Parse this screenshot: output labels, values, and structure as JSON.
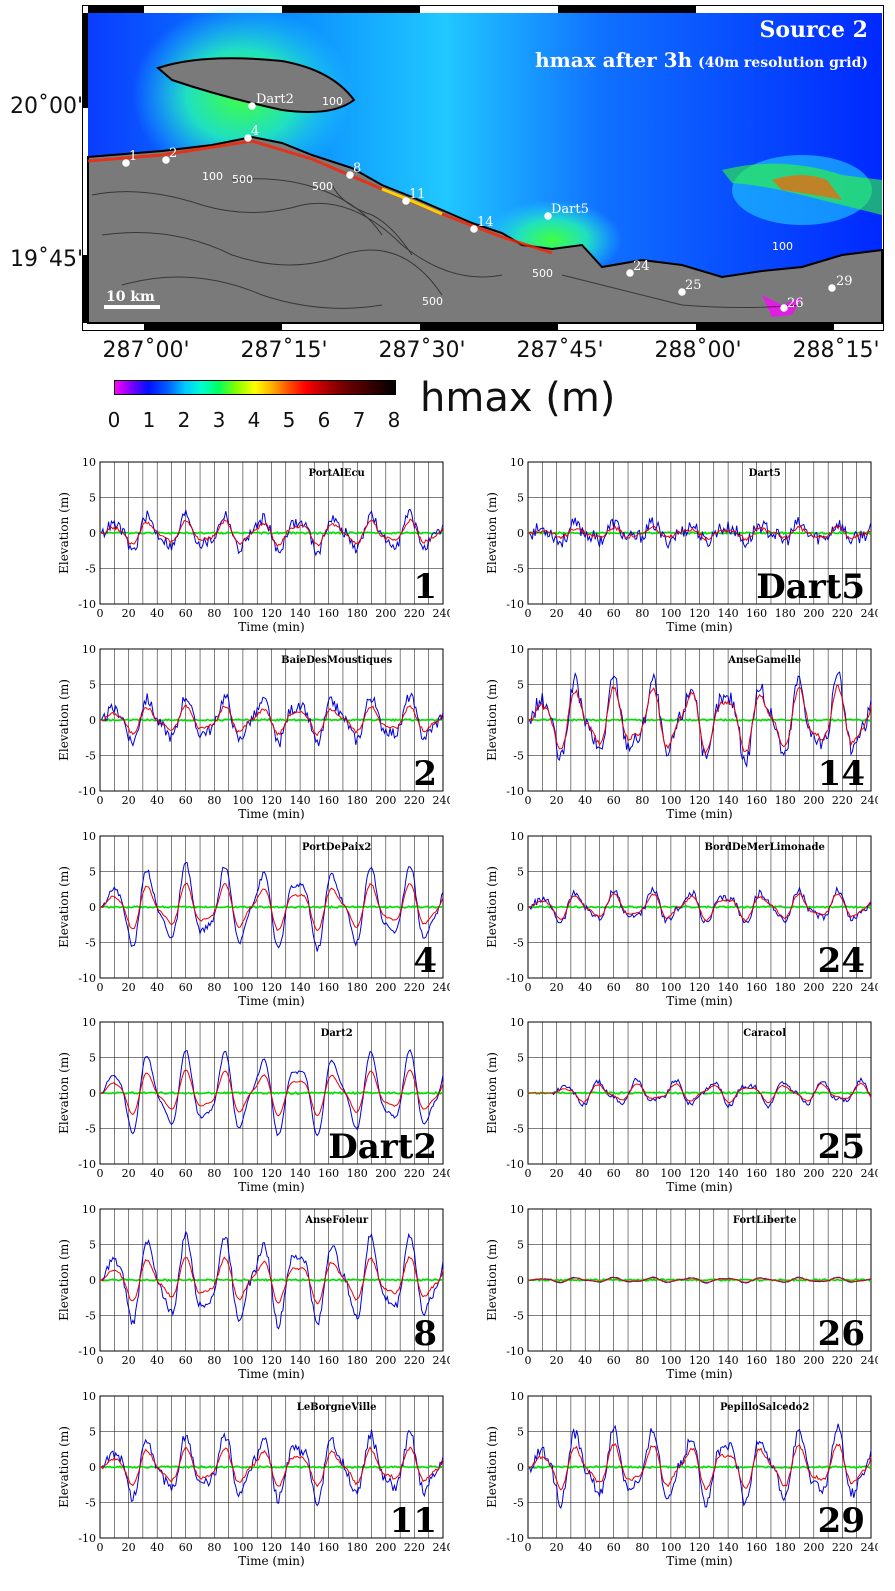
{
  "map": {
    "title_line1": "Source 2",
    "title_line2": "hmax after 3h",
    "title_line2_sub": "(40m resolution grid)",
    "x_ticks": [
      "287˚00'",
      "287˚15'",
      "287˚30'",
      "287˚45'",
      "288˚00'",
      "288˚15'"
    ],
    "y_ticks": [
      "20˚00'",
      "19˚45'"
    ],
    "scale_label": "10 km",
    "stations": [
      "1",
      "2",
      "Dart2",
      "4",
      "8",
      "11",
      "14",
      "Dart5",
      "24",
      "25",
      "26",
      "29"
    ],
    "contour_labels": [
      "100",
      "500",
      "100",
      "500",
      "500",
      "500",
      "100"
    ]
  },
  "colorbar": {
    "title": "hmax (m)",
    "ticks": [
      "0",
      "1",
      "2",
      "3",
      "4",
      "5",
      "6",
      "7",
      "8"
    ]
  },
  "axis_common": {
    "ylabel": "Elevation (m)",
    "xlabel": "Time (min)",
    "x_ticks": [
      "0",
      "20",
      "40",
      "60",
      "80",
      "100",
      "120",
      "140",
      "160",
      "180",
      "200",
      "220",
      "240"
    ],
    "y_ticks": [
      "10",
      "5",
      "0",
      "-5",
      "-10"
    ]
  },
  "chart_data": [
    {
      "type": "line",
      "title": "PortAlEcu",
      "label": "1",
      "xlim": [
        0,
        240
      ],
      "ylim": [
        -10,
        10
      ],
      "xlabel": "Time (min)",
      "ylabel": "Elevation (m)",
      "amp_blue": 2.0,
      "amp_red": 1.3,
      "period": 26,
      "noise": 0.8,
      "colors": {
        "blue": "#0000dd",
        "red": "#ee0000",
        "green": "#00dd00"
      }
    },
    {
      "type": "line",
      "title": "Dart5",
      "label": "Dart5",
      "xlim": [
        0,
        240
      ],
      "ylim": [
        -10,
        10
      ],
      "xlabel": "Time (min)",
      "ylabel": "Elevation (m)",
      "amp_blue": 1.0,
      "amp_red": 0.6,
      "period": 26,
      "noise": 1.0,
      "colors": {
        "blue": "#0000dd",
        "red": "#ee0000",
        "green": "#00dd00"
      }
    },
    {
      "type": "line",
      "title": "BaieDesMoustiques",
      "label": "2",
      "xlim": [
        0,
        240
      ],
      "ylim": [
        -10,
        10
      ],
      "xlabel": "Time (min)",
      "ylabel": "Elevation (m)",
      "amp_blue": 2.5,
      "amp_red": 1.5,
      "period": 26,
      "noise": 0.8,
      "colors": {
        "blue": "#0000dd",
        "red": "#ee0000",
        "green": "#00dd00"
      }
    },
    {
      "type": "line",
      "title": "AnseGamelle",
      "label": "14",
      "xlim": [
        0,
        240
      ],
      "ylim": [
        -10,
        10
      ],
      "xlabel": "Time (min)",
      "ylabel": "Elevation (m)",
      "amp_blue": 4.5,
      "amp_red": 3.5,
      "period": 26,
      "noise": 1.2,
      "clip": -6.5,
      "colors": {
        "blue": "#0000dd",
        "red": "#ee0000",
        "green": "#00dd00"
      }
    },
    {
      "type": "line",
      "title": "PortDePaix2",
      "label": "4",
      "xlim": [
        0,
        240
      ],
      "ylim": [
        -10,
        10
      ],
      "xlabel": "Time (min)",
      "ylabel": "Elevation (m)",
      "amp_blue": 4.5,
      "amp_red": 2.5,
      "period": 26,
      "noise": 0.4,
      "colors": {
        "blue": "#0000dd",
        "red": "#ee0000",
        "green": "#00dd00"
      }
    },
    {
      "type": "line",
      "title": "BordDeMerLimonade",
      "label": "24",
      "xlim": [
        0,
        240
      ],
      "ylim": [
        -10,
        10
      ],
      "xlabel": "Time (min)",
      "ylabel": "Elevation (m)",
      "amp_blue": 1.8,
      "amp_red": 1.4,
      "period": 26,
      "noise": 0.5,
      "clip": -2.2,
      "colors": {
        "blue": "#0000dd",
        "red": "#ee0000",
        "green": "#00dd00"
      }
    },
    {
      "type": "line",
      "title": "Dart2",
      "label": "Dart2",
      "xlim": [
        0,
        240
      ],
      "ylim": [
        -10,
        10
      ],
      "xlabel": "Time (min)",
      "ylabel": "Elevation (m)",
      "amp_blue": 4.5,
      "amp_red": 2.4,
      "period": 26,
      "noise": 0.2,
      "colors": {
        "blue": "#0000dd",
        "red": "#ee0000",
        "green": "#00dd00"
      }
    },
    {
      "type": "line",
      "title": "Caracol",
      "label": "25",
      "xlim": [
        0,
        240
      ],
      "ylim": [
        -10,
        10
      ],
      "xlabel": "Time (min)",
      "ylabel": "Elevation (m)",
      "amp_blue": 1.4,
      "amp_red": 1.0,
      "period": 26,
      "noise": 0.3,
      "start": 18,
      "clip": -2.5,
      "colors": {
        "blue": "#0000dd",
        "red": "#ee0000",
        "green": "#00dd00"
      }
    },
    {
      "type": "line",
      "title": "AnseFoleur",
      "label": "8",
      "xlim": [
        0,
        240
      ],
      "ylim": [
        -10,
        10
      ],
      "xlabel": "Time (min)",
      "ylabel": "Elevation (m)",
      "amp_blue": 4.8,
      "amp_red": 2.4,
      "period": 26,
      "noise": 0.6,
      "colors": {
        "blue": "#0000dd",
        "red": "#ee0000",
        "green": "#00dd00"
      }
    },
    {
      "type": "line",
      "title": "FortLiberte",
      "label": "26",
      "xlim": [
        0,
        240
      ],
      "ylim": [
        -10,
        10
      ],
      "xlabel": "Time (min)",
      "ylabel": "Elevation (m)",
      "amp_blue": 0.3,
      "amp_red": 0.25,
      "period": 26,
      "noise": 0.05,
      "colors": {
        "blue": "#0000dd",
        "red": "#ee0000",
        "green": "#00dd00"
      }
    },
    {
      "type": "line",
      "title": "LeBorgneVille",
      "label": "11",
      "xlim": [
        0,
        240
      ],
      "ylim": [
        -10,
        10
      ],
      "xlabel": "Time (min)",
      "ylabel": "Elevation (m)",
      "amp_blue": 3.5,
      "amp_red": 2.0,
      "period": 26,
      "noise": 0.8,
      "colors": {
        "blue": "#0000dd",
        "red": "#ee0000",
        "green": "#00dd00"
      }
    },
    {
      "type": "line",
      "title": "PepilloSalcedo2",
      "label": "29",
      "xlim": [
        0,
        240
      ],
      "ylim": [
        -10,
        10
      ],
      "xlabel": "Time (min)",
      "ylabel": "Elevation (m)",
      "amp_blue": 4.0,
      "amp_red": 2.4,
      "period": 26,
      "noise": 0.8,
      "colors": {
        "blue": "#0000dd",
        "red": "#ee0000",
        "green": "#00dd00"
      }
    }
  ]
}
